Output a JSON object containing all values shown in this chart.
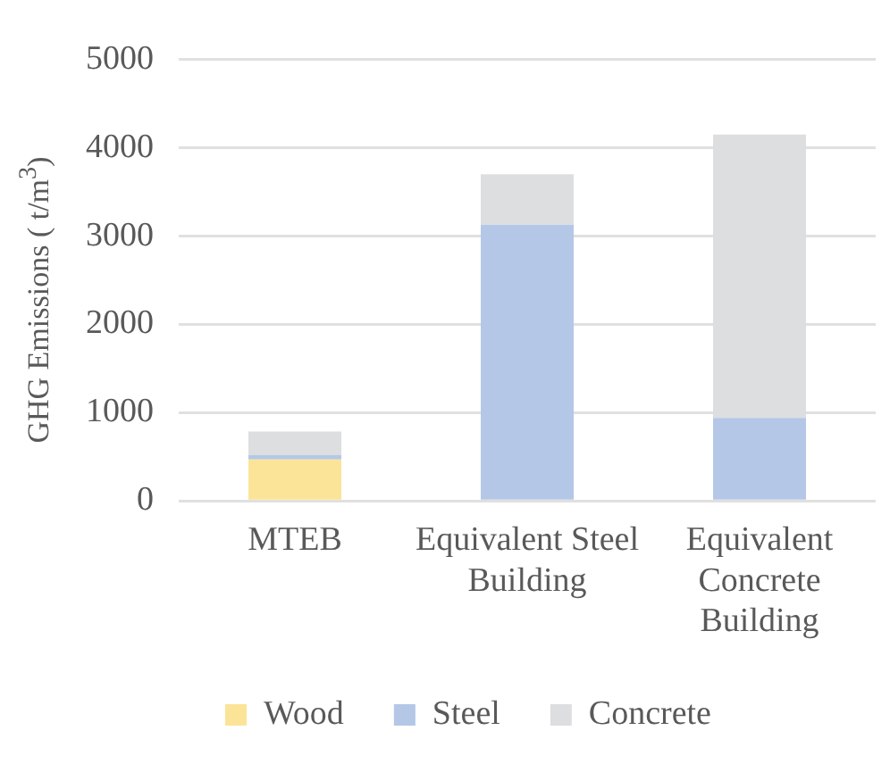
{
  "chart_data": {
    "type": "bar",
    "stacked": true,
    "ylabel": "GHG Emissions ( t/m$^{3}$)",
    "categories": [
      "MTEB",
      "Equivalent Steel Building",
      "Equivalent Concrete Building"
    ],
    "series": [
      {
        "name": "Wood",
        "color": "#fbe498",
        "values": [
          470,
          0,
          0
        ]
      },
      {
        "name": "Steel",
        "color": "#b4c7e7",
        "values": [
          50,
          3130,
          940
        ]
      },
      {
        "name": "Concrete",
        "color": "#dddee0",
        "values": [
          265,
          570,
          3210
        ]
      }
    ],
    "ylim": [
      0,
      5000
    ],
    "yticks": [
      0,
      1000,
      2000,
      3000,
      4000,
      5000
    ],
    "grid": "y",
    "legend": "bottom"
  }
}
